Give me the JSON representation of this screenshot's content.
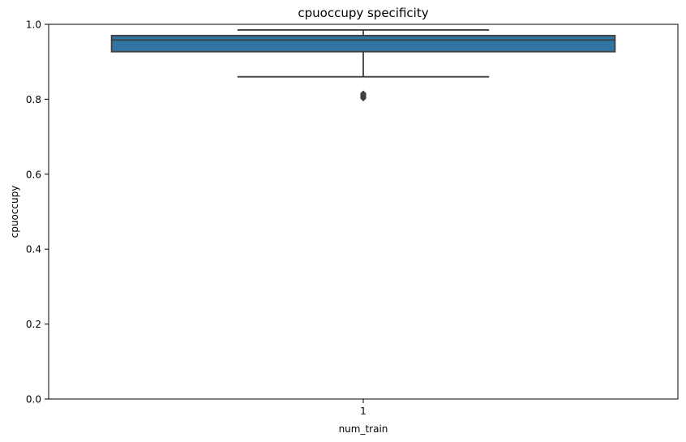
{
  "chart_data": {
    "type": "box",
    "title": "cpuoccupy specificity",
    "xlabel": "num_train",
    "ylabel": "cpuoccupy",
    "categories": [
      "1"
    ],
    "ylim": [
      0.0,
      1.0
    ],
    "yticks": [
      0.0,
      0.2,
      0.4,
      0.6,
      0.8,
      1.0
    ],
    "ytick_labels": [
      "0.0",
      "0.2",
      "0.4",
      "0.6",
      "0.8",
      "1.0"
    ],
    "boxes": [
      {
        "category": "1",
        "whisker_low": 0.86,
        "q1": 0.927,
        "median": 0.958,
        "q3": 0.97,
        "whisker_high": 0.985,
        "outliers": [
          0.803,
          0.807,
          0.811,
          0.815
        ]
      }
    ],
    "box_color": "#3274a1",
    "line_color": "#3f3f3f",
    "grid": false,
    "legend": "none"
  }
}
